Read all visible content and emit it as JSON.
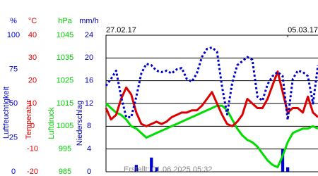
{
  "chart_data": {
    "type": "line",
    "x": [
      0,
      4,
      8,
      12,
      16,
      20,
      24,
      28,
      32,
      36,
      40,
      44,
      48,
      52,
      56,
      60,
      64,
      68,
      72,
      76,
      80,
      84,
      88,
      92,
      96,
      100,
      104,
      108,
      112,
      116,
      120,
      124,
      128,
      132,
      136,
      140,
      144,
      148,
      152,
      156,
      160,
      164,
      168
    ],
    "xlim": [
      0,
      168
    ],
    "xticks": [
      {
        "value": 0,
        "label": "27.02.17"
      },
      {
        "value": 144,
        "label": "05.03.17"
      }
    ],
    "axes": [
      {
        "unit": "%",
        "lim": [
          0,
          100
        ],
        "ticks": [
          0,
          25,
          50,
          75,
          100
        ],
        "color": "#0000cc"
      },
      {
        "unit": "°C",
        "lim": [
          -20,
          40
        ],
        "ticks": [
          -20,
          -10,
          0,
          10,
          20,
          30,
          40
        ],
        "color": "#dd0000"
      },
      {
        "unit": "hPa",
        "lim": [
          985,
          1045
        ],
        "ticks": [
          985,
          995,
          1005,
          1015,
          1025,
          1035,
          1045
        ],
        "color": "#00cc00"
      },
      {
        "unit": "mm/h",
        "lim": [
          0,
          24
        ],
        "ticks": [
          0,
          4,
          8,
          12,
          16,
          20,
          24
        ],
        "color": "#0000aa",
        "grid": true
      }
    ],
    "series": [
      {
        "name": "Luftfeuchtigkeit",
        "axis": "%",
        "style": "dots",
        "color": "#0000cc",
        "values": [
          63,
          68,
          74,
          55,
          40,
          40,
          55,
          72,
          79,
          78,
          74,
          73,
          74,
          72,
          75,
          76,
          68,
          66,
          72,
          84,
          90,
          91,
          88,
          62,
          42,
          65,
          78,
          81,
          84,
          82,
          55,
          52,
          64,
          70,
          73,
          70,
          38,
          68,
          74,
          73,
          70,
          50,
          78
        ]
      },
      {
        "name": "Temperatur",
        "axis": "°C",
        "style": "line",
        "color": "#dd0000",
        "values": [
          8,
          3,
          5,
          12,
          17,
          14,
          6,
          1,
          0,
          1,
          2,
          1,
          2,
          4,
          5,
          6,
          6,
          7,
          7,
          9,
          12,
          15,
          10,
          5,
          1,
          0,
          2,
          5,
          12,
          10,
          8,
          8,
          12,
          18,
          24,
          15,
          6,
          8,
          8,
          6,
          13,
          6,
          4
        ]
      },
      {
        "name": "Luftdruck",
        "axis": "hPa",
        "style": "line",
        "color": "#00dd00",
        "values": [
          1015,
          1013,
          1011,
          1010,
          1008,
          1005,
          1004,
          1002,
          1000,
          1001,
          1002,
          1003,
          1004,
          1005,
          1006,
          1007,
          1008,
          1009,
          1010,
          1011,
          1012,
          1013,
          1014,
          1014,
          1012,
          1008,
          1004,
          1001,
          999,
          998,
          996,
          993,
          990,
          988,
          987,
          992,
          998,
          1002,
          1003,
          1004,
          1004,
          1005,
          1004
        ]
      },
      {
        "name": "Niederschlag",
        "axis": "mm/h",
        "style": "bar",
        "color": "#0000cc",
        "values": [
          0,
          0,
          0,
          0,
          0,
          0,
          1.2,
          0,
          0,
          2.5,
          0.8,
          0,
          0,
          0,
          0,
          0,
          0,
          0,
          0,
          0,
          0,
          0,
          0,
          0,
          0,
          0,
          0,
          0,
          0,
          0,
          0,
          0,
          0,
          0,
          0,
          4,
          0.8,
          0,
          0,
          0,
          0,
          0,
          0
        ]
      }
    ],
    "footnote": "Erstellt: 01.06.2025 05:32"
  }
}
